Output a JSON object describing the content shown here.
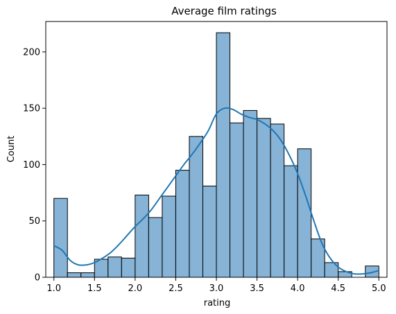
{
  "chart_data": {
    "type": "bar",
    "title": "Average film ratings",
    "xlabel": "rating",
    "ylabel": "Count",
    "xlim": [
      0.9,
      5.1
    ],
    "ylim": [
      0,
      227
    ],
    "x_ticks": [
      1.0,
      1.5,
      2.0,
      2.5,
      3.0,
      3.5,
      4.0,
      4.5,
      5.0
    ],
    "x_tick_labels": [
      "1.0",
      "1.5",
      "2.0",
      "2.5",
      "3.0",
      "3.5",
      "4.0",
      "4.5",
      "5.0"
    ],
    "y_ticks": [
      0,
      50,
      100,
      150,
      200
    ],
    "y_tick_labels": [
      "0",
      "50",
      "100",
      "150",
      "200"
    ],
    "grid": false,
    "bins": [
      {
        "x0": 1.0,
        "x1": 1.1667,
        "count": 70
      },
      {
        "x0": 1.1667,
        "x1": 1.3333,
        "count": 4
      },
      {
        "x0": 1.3333,
        "x1": 1.5,
        "count": 4
      },
      {
        "x0": 1.5,
        "x1": 1.6667,
        "count": 16
      },
      {
        "x0": 1.6667,
        "x1": 1.8333,
        "count": 18
      },
      {
        "x0": 1.8333,
        "x1": 2.0,
        "count": 17
      },
      {
        "x0": 2.0,
        "x1": 2.1667,
        "count": 73
      },
      {
        "x0": 2.1667,
        "x1": 2.3333,
        "count": 53
      },
      {
        "x0": 2.3333,
        "x1": 2.5,
        "count": 72
      },
      {
        "x0": 2.5,
        "x1": 2.6667,
        "count": 95
      },
      {
        "x0": 2.6667,
        "x1": 2.8333,
        "count": 125
      },
      {
        "x0": 2.8333,
        "x1": 3.0,
        "count": 81
      },
      {
        "x0": 3.0,
        "x1": 3.1667,
        "count": 217
      },
      {
        "x0": 3.1667,
        "x1": 3.3333,
        "count": 137
      },
      {
        "x0": 3.3333,
        "x1": 3.5,
        "count": 148
      },
      {
        "x0": 3.5,
        "x1": 3.6667,
        "count": 141
      },
      {
        "x0": 3.6667,
        "x1": 3.8333,
        "count": 136
      },
      {
        "x0": 3.8333,
        "x1": 4.0,
        "count": 99
      },
      {
        "x0": 4.0,
        "x1": 4.1667,
        "count": 114
      },
      {
        "x0": 4.1667,
        "x1": 4.3333,
        "count": 34
      },
      {
        "x0": 4.3333,
        "x1": 4.5,
        "count": 13
      },
      {
        "x0": 4.5,
        "x1": 4.6667,
        "count": 5
      },
      {
        "x0": 4.6667,
        "x1": 4.8333,
        "count": 0
      },
      {
        "x0": 4.8333,
        "x1": 5.0,
        "count": 10
      }
    ],
    "kde": {
      "x": [
        1.0,
        1.1,
        1.2,
        1.3,
        1.4,
        1.5,
        1.6,
        1.7,
        1.8,
        1.9,
        2.0,
        2.1,
        2.2,
        2.3,
        2.4,
        2.5,
        2.6,
        2.7,
        2.8,
        2.9,
        3.0,
        3.1,
        3.2,
        3.3,
        3.4,
        3.5,
        3.6,
        3.7,
        3.8,
        3.9,
        4.0,
        4.1,
        4.2,
        4.3,
        4.4,
        4.5,
        4.6,
        4.7,
        4.8,
        4.9,
        5.0
      ],
      "y": [
        28,
        24,
        15,
        11,
        11,
        13,
        17,
        22,
        29,
        37,
        45,
        52,
        60,
        70,
        80,
        90,
        100,
        109,
        119,
        130,
        145,
        150,
        149,
        145,
        142,
        140,
        136,
        130,
        121,
        108,
        92,
        72,
        50,
        30,
        17,
        9,
        5,
        3,
        3,
        4,
        6
      ]
    },
    "colors": {
      "bar_fill": "#86b3d6",
      "bar_edge": "#000000",
      "line": "#1f77b4",
      "axes": "#000000"
    }
  }
}
